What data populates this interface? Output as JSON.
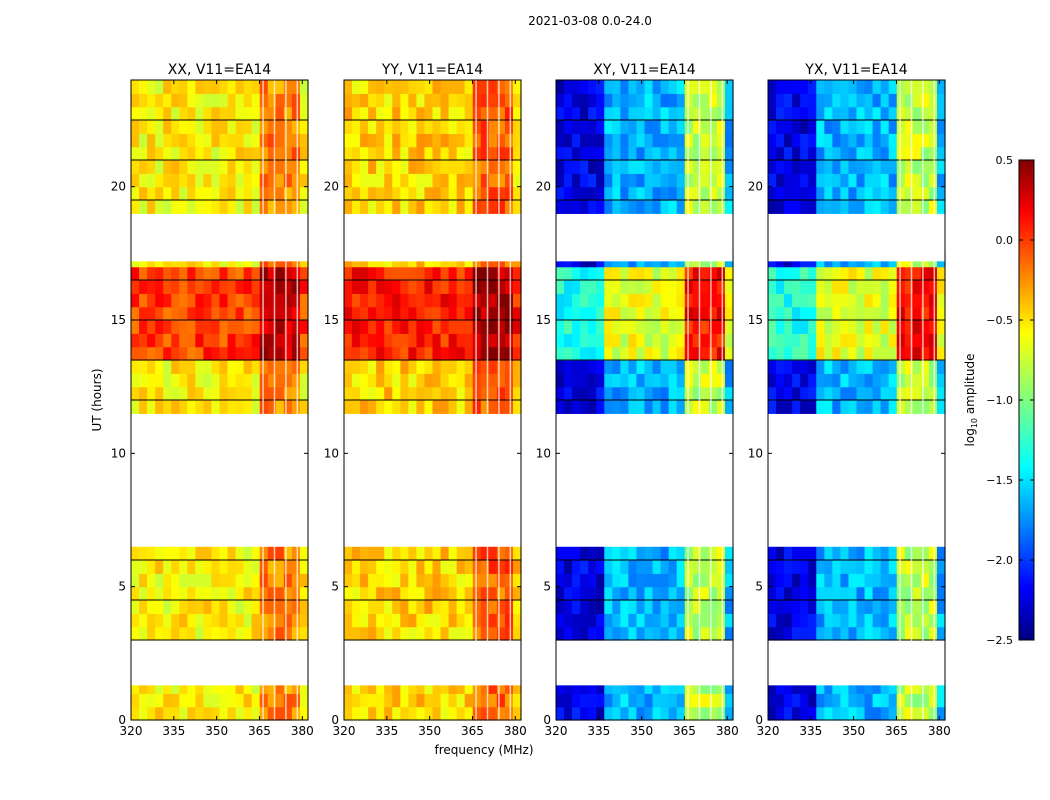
{
  "figure_title": "2021-03-08 0.0-24.0",
  "chart_data": {
    "type": "heatmap",
    "suptitle": "2021-03-08 0.0-24.0",
    "xlabel": "frequency (MHz)",
    "ylabel": "UT (hours)",
    "xlim": [
      320,
      382
    ],
    "ylim": [
      0,
      24
    ],
    "xticks": [
      320,
      335,
      350,
      365,
      380
    ],
    "yticks": [
      0,
      5,
      10,
      15,
      20
    ],
    "no_data_ut_ranges": [
      [
        1.3,
        2.6
      ],
      [
        6.5,
        11.1
      ],
      [
        17.2,
        18.8
      ]
    ],
    "panels": [
      {
        "title": "XX, V11=EA14",
        "product": "XX",
        "level": -0.6
      },
      {
        "title": "YY, V11=EA14",
        "product": "YY",
        "level": -0.5
      },
      {
        "title": "XY, V11=EA14",
        "product": "XY",
        "level": -1.6
      },
      {
        "title": "YX, V11=EA14",
        "product": "YX",
        "level": -1.6
      }
    ],
    "colorbar": {
      "label_prefix": "log",
      "label_sub": "10",
      "label_suffix": " amplitude",
      "range": [
        -2.5,
        0.5
      ],
      "ticks": [
        "0.5",
        "0.0",
        "−0.5",
        "−1.0",
        "−1.5",
        "−2.0",
        "−2.5"
      ],
      "tick_values": [
        0.5,
        0.0,
        -0.5,
        -1.0,
        -1.5,
        -2.0,
        -2.5
      ],
      "colormap": "jet"
    }
  }
}
